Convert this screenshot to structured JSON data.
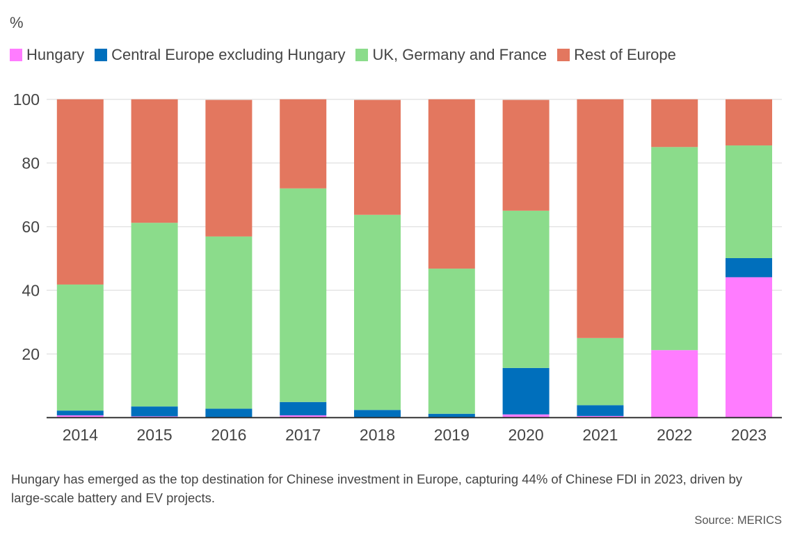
{
  "chart_data": {
    "type": "bar",
    "stacked": true,
    "title": "",
    "xlabel": "",
    "ylabel": "%",
    "ylim": [
      0,
      100
    ],
    "yticks": [
      20,
      40,
      60,
      80,
      100
    ],
    "grid": true,
    "legend_position": "top-left",
    "categories": [
      "2014",
      "2015",
      "2016",
      "2017",
      "2018",
      "2019",
      "2020",
      "2021",
      "2022",
      "2023"
    ],
    "series": [
      {
        "name": "Hungary",
        "color": "#ff7cff",
        "values": [
          0.7,
          0.4,
          0,
          0.7,
          0,
          0,
          1.0,
          0.5,
          21.2,
          44.1
        ]
      },
      {
        "name": "Central Europe excluding Hungary",
        "color": "#006fbc",
        "values": [
          1.5,
          3.1,
          2.8,
          4.2,
          2.4,
          1.2,
          14.6,
          3.4,
          0,
          6.0
        ]
      },
      {
        "name": "UK, Germany and France",
        "color": "#8bdc8b",
        "values": [
          39.6,
          57.7,
          54.1,
          67.1,
          61.3,
          45.6,
          49.4,
          21.1,
          63.8,
          35.4
        ]
      },
      {
        "name": "Rest of Europe",
        "color": "#e3775f",
        "values": [
          58.2,
          38.8,
          42.9,
          28.0,
          36.1,
          53.2,
          34.8,
          75.0,
          15.0,
          14.5
        ]
      }
    ]
  },
  "caption": "Hungary has emerged as the top destination for Chinese investment in Europe, capturing 44% of Chinese FDI in 2023, driven by large-scale battery and EV projects.",
  "source": "Source: MERICS"
}
